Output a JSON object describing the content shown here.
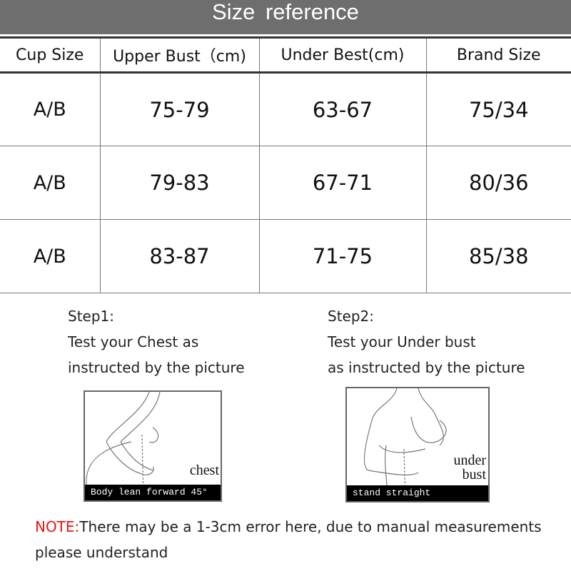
{
  "title": "Size reference",
  "table": {
    "headers": [
      "Cup Size",
      "Upper Bust（cm)",
      "Under Best(cm)",
      "Brand Size"
    ],
    "rows": [
      [
        "A/B",
        "75-79",
        "63-67",
        "75/34"
      ],
      [
        "A/B",
        "79-83",
        "67-71",
        "80/36"
      ],
      [
        "A/B",
        "83-87",
        "71-75",
        "85/38"
      ]
    ]
  },
  "steps": [
    {
      "heading": "Step1:",
      "line1": "Test your Chest as",
      "line2": "instructed by the picture",
      "label": "chest",
      "caption": "Body lean forward 45°"
    },
    {
      "heading": "Step2:",
      "line1": "Test your Under bust",
      "line2": "as instructed by the picture",
      "label1": "under",
      "label2": "bust",
      "caption": "stand straight"
    }
  ],
  "note": {
    "prefix": "NOTE:",
    "text": "There may be a 1-3cm error here, due to manual measurements",
    "line2": "please understand",
    "prefix_color": "#e11111"
  }
}
